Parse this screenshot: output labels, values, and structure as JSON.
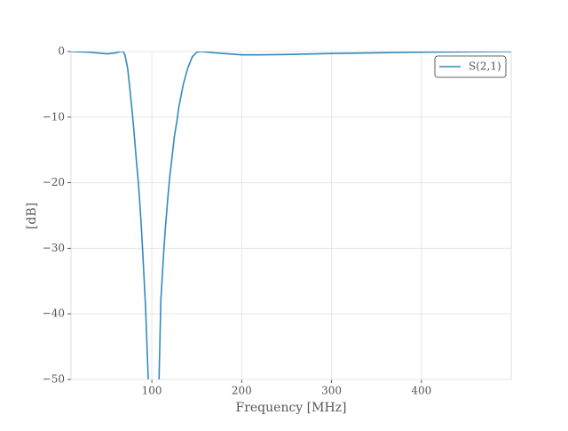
{
  "chart_data": {
    "type": "line",
    "xlabel": "Frequency [MHz]",
    "ylabel": "[dB]",
    "x": [
      10,
      30,
      50,
      60,
      65,
      68,
      70,
      73,
      75,
      78,
      80,
      83,
      85,
      88,
      90,
      93,
      96,
      102,
      108,
      110,
      113,
      115,
      118,
      120,
      123,
      125,
      128,
      130,
      135,
      140,
      145,
      150,
      155,
      170,
      200,
      220,
      250,
      300,
      350,
      400,
      450,
      500
    ],
    "series": [
      {
        "name": "S(2,1)",
        "color": "#348abd",
        "values": [
          0,
          -0.1,
          -0.35,
          -0.2,
          0,
          0,
          -0.5,
          -2.5,
          -5,
          -9,
          -12,
          -17,
          -20,
          -26,
          -31,
          -39,
          -50,
          null,
          -50,
          -38,
          -31,
          -27,
          -22,
          -19,
          -15.5,
          -13,
          -10.5,
          -8.5,
          -5,
          -2.5,
          -0.8,
          -0.1,
          0,
          -0.2,
          -0.5,
          -0.5,
          -0.45,
          -0.3,
          -0.2,
          -0.1,
          -0.05,
          0
        ]
      }
    ],
    "xlim": [
      10,
      500
    ],
    "ylim": [
      -50,
      0
    ],
    "xticks": [
      100,
      200,
      300,
      400
    ],
    "yticks": [
      {
        "value": -50,
        "label": "−50"
      },
      {
        "value": -40,
        "label": "−40"
      },
      {
        "value": -30,
        "label": "−30"
      },
      {
        "value": -20,
        "label": "−20"
      },
      {
        "value": -10,
        "label": "−10"
      },
      0
    ],
    "grid": true,
    "legend": "upper right"
  }
}
